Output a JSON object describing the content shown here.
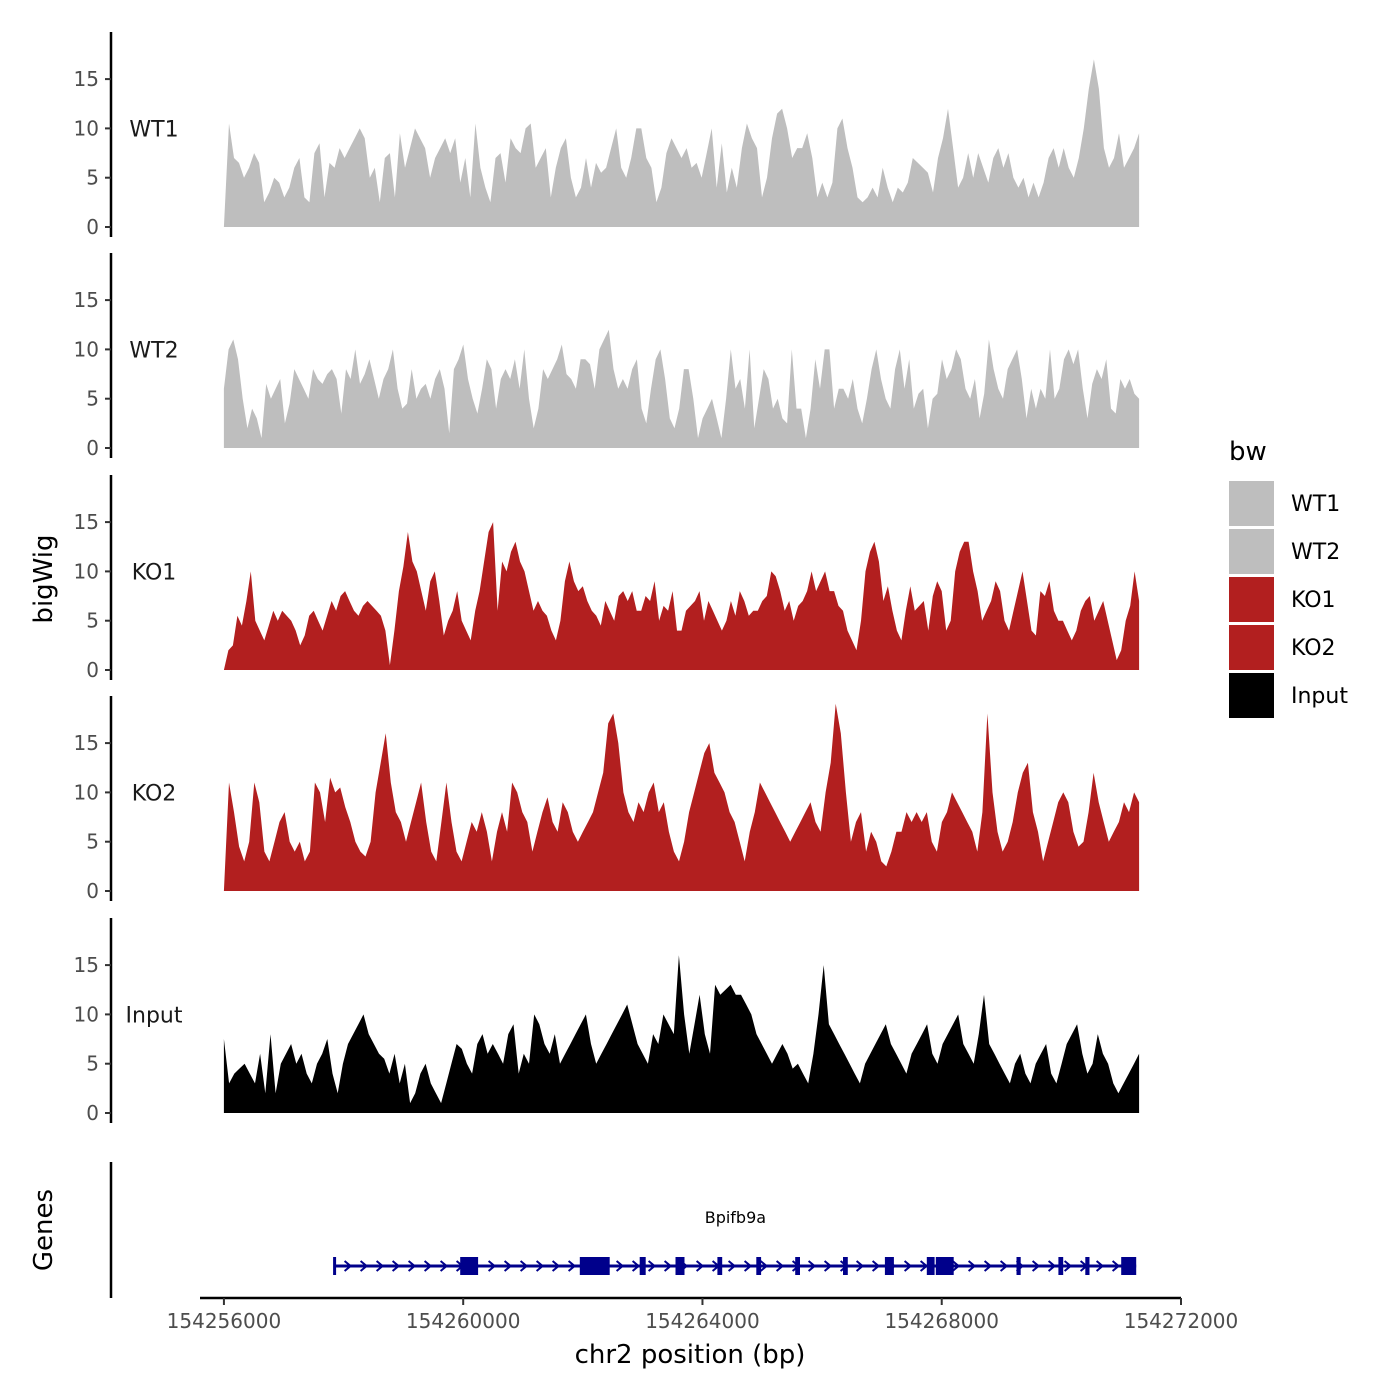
{
  "chart_data": {
    "type": "area",
    "title": "",
    "ylabel": "bigWig",
    "genes_label": "Genes",
    "xlabel": "chr2 position (bp)",
    "xlim": [
      154255600,
      154272000
    ],
    "ylim": [
      0,
      20
    ],
    "x_ticks": [
      154256000,
      154260000,
      154264000,
      154268000,
      154272000
    ],
    "x_tick_labels": [
      "154256000",
      "154260000",
      "154264000",
      "154268000",
      "154272000"
    ],
    "y_ticks": [
      0,
      5,
      10,
      15
    ],
    "y_tick_labels": [
      "0",
      "5",
      "10",
      "15"
    ],
    "x_range": [
      154256000,
      154271300
    ],
    "legend": {
      "title": "bw",
      "position": "right",
      "entries": [
        {
          "label": "WT1",
          "color": "#bebebe"
        },
        {
          "label": "WT2",
          "color": "#bebebe"
        },
        {
          "label": "KO1",
          "color": "#b21f1f"
        },
        {
          "label": "KO2",
          "color": "#b21f1f"
        },
        {
          "label": "Input",
          "color": "#000000"
        }
      ]
    },
    "series": [
      {
        "name": "WT1",
        "color": "#bebebe",
        "values": [
          0,
          10.5,
          7,
          6.5,
          5,
          6,
          7.5,
          6.5,
          2.5,
          3.5,
          5,
          4.5,
          3,
          4,
          6,
          7,
          3,
          2.5,
          7.5,
          8.5,
          3,
          6.5,
          6,
          8,
          7,
          8,
          9,
          10,
          9,
          5,
          6,
          2.5,
          7,
          7.5,
          3,
          9.5,
          6,
          8,
          10,
          9,
          8,
          5,
          7,
          8,
          9,
          7.5,
          9,
          4.5,
          7,
          3,
          10.5,
          6,
          4,
          2.5,
          7,
          7.5,
          4.5,
          9,
          8,
          7.5,
          10,
          10.5,
          6,
          7,
          8,
          3,
          6,
          8,
          9,
          5,
          3,
          4,
          7,
          4,
          6.5,
          5.5,
          6,
          8,
          10,
          6,
          5,
          7,
          10,
          10,
          7,
          6,
          2.5,
          4,
          7.5,
          9,
          8,
          7,
          8,
          6,
          6.5,
          5,
          7.5,
          10,
          4,
          8.5,
          3.5,
          6,
          4,
          8,
          10.5,
          9,
          8,
          3,
          5,
          9,
          11.5,
          12,
          10,
          7,
          8,
          8,
          9.5,
          7,
          3,
          4.5,
          3,
          4.5,
          10,
          11,
          8,
          6,
          3,
          2.5,
          3,
          4,
          3,
          6,
          4,
          2.5,
          4,
          3.5,
          4.5,
          7,
          6.5,
          6,
          5.5,
          3.5,
          7,
          9,
          12,
          8,
          4,
          5,
          7.5,
          5,
          7.5,
          6,
          4.5,
          7,
          8,
          6,
          7.5,
          5,
          4,
          5,
          3,
          4.5,
          3,
          4.5,
          7,
          8,
          6,
          8,
          6,
          5,
          7,
          10,
          14,
          17,
          14,
          8,
          6,
          7,
          9.5,
          6,
          7,
          8,
          9.5
        ],
        "notes": ""
      },
      {
        "name": "WT2",
        "color": "#bebebe",
        "values": [
          6,
          10,
          11,
          9,
          5,
          2,
          4,
          3,
          1,
          6.5,
          5,
          6,
          7,
          2.5,
          4.5,
          8,
          7,
          6,
          5,
          8,
          7,
          6.5,
          7.5,
          8,
          7,
          3.5,
          8,
          7,
          10,
          6.5,
          7.5,
          9,
          7,
          5,
          7,
          8,
          10,
          6,
          4,
          4.5,
          8,
          5,
          6,
          6.5,
          5,
          7,
          8,
          6,
          1.5,
          8,
          9,
          10.5,
          7,
          5,
          3.5,
          6,
          9,
          8,
          4,
          7,
          8,
          7,
          9,
          6,
          10,
          5,
          2,
          4,
          8,
          7,
          8,
          9,
          10.5,
          7.5,
          7,
          6,
          9,
          9,
          8.5,
          6,
          10,
          11,
          12,
          8,
          6,
          7,
          6,
          8,
          9,
          4,
          2.5,
          6,
          9,
          10,
          7,
          3,
          2,
          4,
          8,
          8,
          5,
          1,
          3,
          4,
          5,
          3,
          1,
          5,
          10,
          6,
          7,
          4,
          10,
          2,
          5,
          8,
          7,
          4,
          5,
          3,
          2.5,
          10,
          4,
          4,
          1,
          4,
          9,
          6,
          10,
          10,
          4,
          6,
          6,
          5,
          7,
          4,
          2.5,
          5,
          8,
          10,
          7,
          5,
          4,
          8,
          10,
          6,
          9,
          4,
          5.5,
          6,
          2,
          5,
          5.5,
          9,
          7,
          8,
          10,
          9,
          6,
          5,
          7,
          3,
          5.5,
          11,
          8,
          6,
          5,
          8,
          9,
          10,
          7,
          3,
          6,
          4,
          6,
          5,
          10,
          5,
          6,
          9,
          10,
          8.5,
          10,
          6,
          3,
          6.5,
          8,
          7,
          9,
          4,
          3.5,
          7,
          6,
          7,
          5.5,
          5
        ],
        "notes": ""
      },
      {
        "name": "KO1",
        "color": "#b21f1f",
        "values": [
          0,
          2,
          2.5,
          5.5,
          4.5,
          7,
          10,
          5,
          4,
          3,
          4.5,
          6,
          5,
          6,
          5.5,
          5,
          4,
          2.5,
          3.5,
          5.5,
          6,
          5,
          4,
          5.5,
          7,
          6,
          7.5,
          8,
          7,
          6,
          5.5,
          6.5,
          7,
          6.5,
          6,
          5.5,
          4,
          0.5,
          4,
          8,
          10.5,
          14,
          11,
          10,
          8,
          6,
          9,
          10,
          7,
          3.5,
          5,
          6,
          8,
          5,
          4,
          3,
          6,
          8,
          11,
          14,
          15,
          6,
          11,
          10,
          12,
          13,
          11,
          10,
          8,
          6,
          7,
          6,
          5.5,
          4,
          3,
          5,
          9,
          11,
          9,
          8,
          8.5,
          7,
          6,
          5.5,
          4.5,
          7,
          6,
          5,
          7.5,
          8,
          7,
          8,
          6,
          6,
          7.5,
          7,
          9,
          5,
          6.5,
          6,
          8,
          4,
          4,
          6,
          6.5,
          7,
          8,
          5,
          7,
          6,
          5,
          4,
          5,
          7,
          5.5,
          8,
          7,
          5.5,
          6,
          6,
          7,
          7.5,
          10,
          9.5,
          8,
          6,
          7,
          5,
          6.5,
          7,
          8,
          10,
          8,
          9,
          10,
          8,
          8,
          6.5,
          6,
          4,
          3,
          2,
          5,
          10,
          12,
          13,
          11,
          7,
          8.5,
          6,
          4,
          3,
          6,
          8.5,
          6,
          6.5,
          7,
          4,
          7.5,
          9,
          8,
          4,
          5,
          10,
          12,
          13,
          13,
          10,
          8,
          5,
          6,
          7,
          9,
          8,
          5,
          4,
          6,
          8,
          10,
          7,
          4,
          3.5,
          8,
          7.5,
          9,
          6,
          5,
          5,
          4,
          3,
          4,
          6,
          7,
          7.5,
          5,
          6,
          7,
          5,
          3,
          1,
          2,
          5,
          6.5,
          10,
          7
        ],
        "notes": ""
      },
      {
        "name": "KO2",
        "color": "#b21f1f",
        "values": [
          0,
          11,
          8,
          4.5,
          3,
          5,
          11,
          9,
          4,
          3,
          5,
          7,
          8,
          5,
          4,
          5,
          3,
          4,
          11,
          10,
          7,
          11.5,
          10,
          10.5,
          8.5,
          7,
          5,
          4,
          3.5,
          5,
          10,
          13,
          16,
          11,
          8,
          7,
          5,
          7,
          9,
          11,
          7,
          4,
          3,
          7,
          11,
          7,
          4,
          3,
          5,
          7,
          6,
          8,
          6,
          3,
          6,
          8,
          6,
          11,
          10,
          8,
          7,
          4,
          6,
          8,
          9.5,
          7,
          6,
          9,
          8,
          6,
          5,
          6,
          7,
          8,
          10,
          12,
          17,
          18,
          15,
          10,
          8,
          7,
          9,
          8,
          10,
          11,
          8,
          9,
          6,
          4,
          3,
          5,
          8,
          10,
          12,
          14,
          15,
          12,
          11,
          10,
          8,
          7,
          5,
          3,
          6,
          8,
          11,
          10,
          9,
          8,
          7,
          6,
          5,
          6,
          7,
          8,
          9,
          7,
          6,
          10,
          13,
          19,
          16,
          10,
          5,
          7,
          8,
          4,
          6,
          5,
          3,
          2.5,
          4,
          6,
          6,
          8,
          7,
          8,
          7,
          8,
          5,
          4,
          7,
          8,
          10,
          9,
          8,
          7,
          6,
          4,
          8,
          18,
          10,
          6,
          4,
          5,
          7,
          10,
          12,
          13,
          8,
          6,
          3,
          5,
          7,
          9,
          10,
          9,
          6,
          4.5,
          5,
          8,
          12,
          9,
          7,
          5,
          6,
          7,
          9,
          8,
          10,
          9
        ],
        "notes": ""
      },
      {
        "name": "Input",
        "color": "#000000",
        "values": [
          7.5,
          3,
          4,
          4.5,
          5,
          4,
          3,
          6,
          2,
          8,
          2,
          5,
          6,
          7,
          5,
          6,
          4,
          3,
          5,
          6,
          7.5,
          4,
          2,
          5,
          7,
          8,
          9,
          10,
          8,
          7,
          6,
          5.5,
          4,
          6,
          3,
          5,
          1,
          2,
          4,
          5,
          3,
          2,
          1,
          3,
          5,
          7,
          6.5,
          5,
          4,
          7,
          8,
          6,
          7,
          6,
          5,
          8,
          9,
          4,
          6,
          5,
          10,
          9,
          7,
          6,
          8,
          5,
          6,
          7,
          8,
          9,
          10,
          7,
          5,
          6,
          7,
          8,
          9,
          10,
          11,
          9,
          7,
          6,
          5,
          8,
          7,
          10,
          9,
          8,
          16,
          10,
          6,
          9,
          12,
          8,
          6,
          13,
          12,
          12.5,
          13,
          12,
          12,
          11,
          10,
          8,
          7,
          6,
          5,
          6,
          7,
          6,
          4.5,
          5,
          4,
          3,
          6,
          10,
          15,
          9,
          8,
          7,
          6,
          5,
          4,
          3,
          5,
          6,
          7,
          8,
          9,
          7,
          6,
          5,
          4,
          6,
          7,
          8,
          9,
          6,
          5,
          7,
          8,
          9,
          10,
          7,
          6,
          5,
          8,
          12,
          7,
          6,
          5,
          4,
          3,
          5,
          6,
          4,
          3,
          5,
          6,
          7,
          4,
          3,
          5,
          7,
          8,
          9,
          6,
          4,
          5,
          8,
          6,
          5,
          3,
          2,
          3,
          4,
          5,
          6
        ],
        "notes": ""
      }
    ],
    "gene": {
      "name": "Bpifb9a",
      "start": 154257850,
      "end": 154271250,
      "strand": "+",
      "exons": [
        {
          "start": 154259950,
          "end": 154260250
        },
        {
          "start": 154261950,
          "end": 154262450
        },
        {
          "start": 154262950,
          "end": 154263050
        },
        {
          "start": 154263550,
          "end": 154263700
        },
        {
          "start": 154264250,
          "end": 154264330
        },
        {
          "start": 154264900,
          "end": 154264980
        },
        {
          "start": 154265550,
          "end": 154265630
        },
        {
          "start": 154266350,
          "end": 154266430
        },
        {
          "start": 154267050,
          "end": 154267200
        },
        {
          "start": 154267750,
          "end": 154267880
        },
        {
          "start": 154267900,
          "end": 154268200
        },
        {
          "start": 154269250,
          "end": 154269320
        },
        {
          "start": 154269950,
          "end": 154270030
        },
        {
          "start": 154270400,
          "end": 154270470
        },
        {
          "start": 154271000,
          "end": 154271250
        }
      ],
      "color": "#00008b"
    }
  }
}
